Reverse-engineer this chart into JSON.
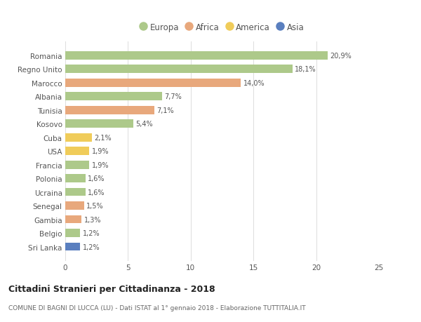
{
  "countries": [
    "Romania",
    "Regno Unito",
    "Marocco",
    "Albania",
    "Tunisia",
    "Kosovo",
    "Cuba",
    "USA",
    "Francia",
    "Polonia",
    "Ucraina",
    "Senegal",
    "Gambia",
    "Belgio",
    "Sri Lanka"
  ],
  "values": [
    20.9,
    18.1,
    14.0,
    7.7,
    7.1,
    5.4,
    2.1,
    1.9,
    1.9,
    1.6,
    1.6,
    1.5,
    1.3,
    1.2,
    1.2
  ],
  "labels": [
    "20,9%",
    "18,1%",
    "14,0%",
    "7,7%",
    "7,1%",
    "5,4%",
    "2,1%",
    "1,9%",
    "1,9%",
    "1,6%",
    "1,6%",
    "1,5%",
    "1,3%",
    "1,2%",
    "1,2%"
  ],
  "continents": [
    "Europa",
    "Europa",
    "Africa",
    "Europa",
    "Africa",
    "Europa",
    "America",
    "America",
    "Europa",
    "Europa",
    "Europa",
    "Africa",
    "Africa",
    "Europa",
    "Asia"
  ],
  "colors": {
    "Europa": "#adc98a",
    "Africa": "#e8a87c",
    "America": "#f0cc5a",
    "Asia": "#5a7fbf"
  },
  "title": "Cittadini Stranieri per Cittadinanza - 2018",
  "subtitle": "COMUNE DI BAGNI DI LUCCA (LU) - Dati ISTAT al 1° gennaio 2018 - Elaborazione TUTTITALIA.IT",
  "xlim": [
    0,
    25
  ],
  "xticks": [
    0,
    5,
    10,
    15,
    20,
    25
  ],
  "background_color": "#ffffff",
  "grid_color": "#dddddd"
}
